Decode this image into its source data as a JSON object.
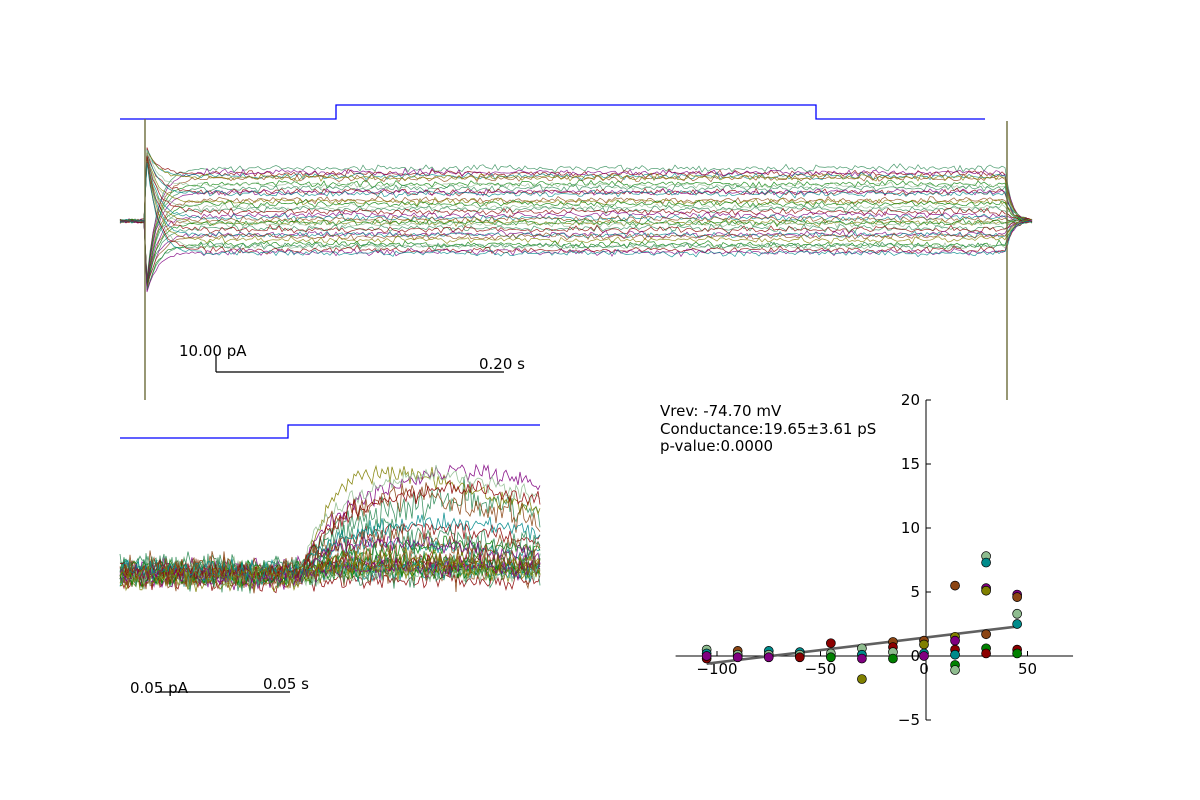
{
  "top_panel": {
    "scalebar_current": "10.00 pA",
    "scalebar_time": "0.20 s",
    "trace_count": 36,
    "stimulus_color": "#0000ff"
  },
  "zoom_panel": {
    "scalebar_current": "0.05 pA",
    "scalebar_time": "0.05 s"
  },
  "iv_panel": {
    "stats": {
      "vrev": "Vrev: -74.70 mV",
      "conductance": "Conductance:19.65±3.61 pS",
      "pvalue": "p-value:0.0000"
    }
  },
  "palette": [
    "#2e8b57",
    "#8b0000",
    "#800080",
    "#008b8b",
    "#8b4513",
    "#808000",
    "#008000",
    "#8fbc8f"
  ],
  "chart_data": {
    "type": "scatter",
    "x_ticks": [
      -100,
      -50,
      0,
      50
    ],
    "y_ticks": [
      -5,
      0,
      5,
      10,
      15,
      20
    ],
    "xlim": [
      -120,
      72
    ],
    "ylim": [
      -5,
      20
    ],
    "grid": false,
    "fit_line": {
      "x": [
        -105,
        45
      ],
      "y": [
        -0.6,
        2.3
      ],
      "color": "#606060"
    },
    "points": [
      {
        "x": -105,
        "y": 0.5,
        "c": 7
      },
      {
        "x": -105,
        "y": 0.2,
        "c": 3
      },
      {
        "x": -105,
        "y": -0.2,
        "c": 1
      },
      {
        "x": -105,
        "y": 0.0,
        "c": 2
      },
      {
        "x": -90,
        "y": 0.4,
        "c": 4
      },
      {
        "x": -90,
        "y": 0.1,
        "c": 7
      },
      {
        "x": -90,
        "y": -0.1,
        "c": 2
      },
      {
        "x": -75,
        "y": 0.4,
        "c": 3
      },
      {
        "x": -75,
        "y": 0.1,
        "c": 7
      },
      {
        "x": -75,
        "y": -0.1,
        "c": 2
      },
      {
        "x": -60,
        "y": 0.3,
        "c": 3
      },
      {
        "x": -60,
        "y": 0.1,
        "c": 7
      },
      {
        "x": -60,
        "y": -0.1,
        "c": 1
      },
      {
        "x": -45,
        "y": 1.0,
        "c": 1
      },
      {
        "x": -45,
        "y": 0.2,
        "c": 7
      },
      {
        "x": -45,
        "y": -0.1,
        "c": 6
      },
      {
        "x": -30,
        "y": 0.6,
        "c": 7
      },
      {
        "x": -30,
        "y": 0.1,
        "c": 3
      },
      {
        "x": -30,
        "y": -0.2,
        "c": 2
      },
      {
        "x": -30,
        "y": -1.8,
        "c": 5
      },
      {
        "x": -15,
        "y": 1.1,
        "c": 4
      },
      {
        "x": -15,
        "y": 0.7,
        "c": 1
      },
      {
        "x": -15,
        "y": 0.3,
        "c": 7
      },
      {
        "x": -15,
        "y": -0.2,
        "c": 6
      },
      {
        "x": 0,
        "y": 1.2,
        "c": 4
      },
      {
        "x": 0,
        "y": 0.9,
        "c": 5
      },
      {
        "x": 0,
        "y": 0.2,
        "c": 3
      },
      {
        "x": 0,
        "y": 0.0,
        "c": 2
      },
      {
        "x": 15,
        "y": 5.5,
        "c": 4
      },
      {
        "x": 15,
        "y": 1.5,
        "c": 5
      },
      {
        "x": 15,
        "y": 1.2,
        "c": 2
      },
      {
        "x": 15,
        "y": 0.5,
        "c": 1
      },
      {
        "x": 15,
        "y": 0.1,
        "c": 3
      },
      {
        "x": 15,
        "y": -0.7,
        "c": 6
      },
      {
        "x": 15,
        "y": -1.1,
        "c": 7
      },
      {
        "x": 30,
        "y": 7.8,
        "c": 7
      },
      {
        "x": 30,
        "y": 7.3,
        "c": 3
      },
      {
        "x": 30,
        "y": 5.3,
        "c": 2
      },
      {
        "x": 30,
        "y": 5.1,
        "c": 5
      },
      {
        "x": 30,
        "y": 1.7,
        "c": 4
      },
      {
        "x": 30,
        "y": 0.6,
        "c": 6
      },
      {
        "x": 30,
        "y": 0.2,
        "c": 1
      },
      {
        "x": 45,
        "y": 4.8,
        "c": 2
      },
      {
        "x": 45,
        "y": 4.6,
        "c": 4
      },
      {
        "x": 45,
        "y": 3.3,
        "c": 7
      },
      {
        "x": 45,
        "y": 2.5,
        "c": 3
      },
      {
        "x": 45,
        "y": 0.5,
        "c": 1
      },
      {
        "x": 45,
        "y": 0.2,
        "c": 6
      }
    ]
  }
}
